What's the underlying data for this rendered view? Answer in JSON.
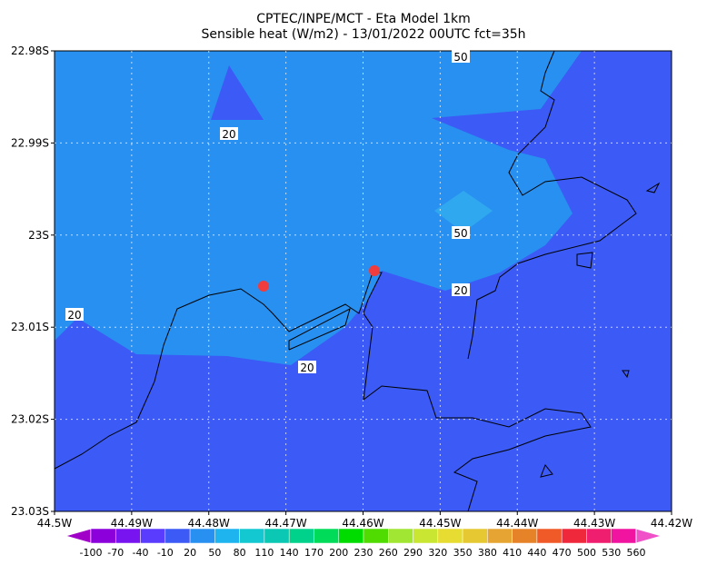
{
  "title": {
    "line1": "CPTEC/INPE/MCT -  Eta Model 1km",
    "line2": "Sensible heat (W/m2) - 13/01/2022 00UTC fct=35h"
  },
  "y_axis": {
    "ticks": [
      "22.98S",
      "22.99S",
      "23S",
      "23.01S",
      "23.02S",
      "23.03S"
    ]
  },
  "x_axis": {
    "ticks": [
      "44.5W",
      "44.49W",
      "44.48W",
      "44.47W",
      "44.46W",
      "44.45W",
      "44.44W",
      "44.43W",
      "44.42W"
    ]
  },
  "contour_labels": [
    "50",
    "20",
    "50",
    "20",
    "20",
    "20"
  ],
  "colorbar": {
    "labels": [
      "-100",
      "-70",
      "-40",
      "-10",
      "20",
      "50",
      "80",
      "110",
      "140",
      "170",
      "200",
      "230",
      "260",
      "290",
      "320",
      "350",
      "380",
      "410",
      "440",
      "470",
      "500",
      "530",
      "560"
    ],
    "colors": [
      "#a000c8",
      "#8c00dc",
      "#7814f0",
      "#5a3cff",
      "#3c5af5",
      "#2890f0",
      "#1eb4f0",
      "#14c8d2",
      "#0ac8b4",
      "#00d28c",
      "#00dc5a",
      "#00dc00",
      "#50dc00",
      "#a0e632",
      "#c8e632",
      "#e6dc32",
      "#e6c832",
      "#e6a532",
      "#e68228",
      "#f05a28",
      "#f0283c",
      "#f01e6e",
      "#f014a0",
      "#f050c8"
    ]
  }
}
